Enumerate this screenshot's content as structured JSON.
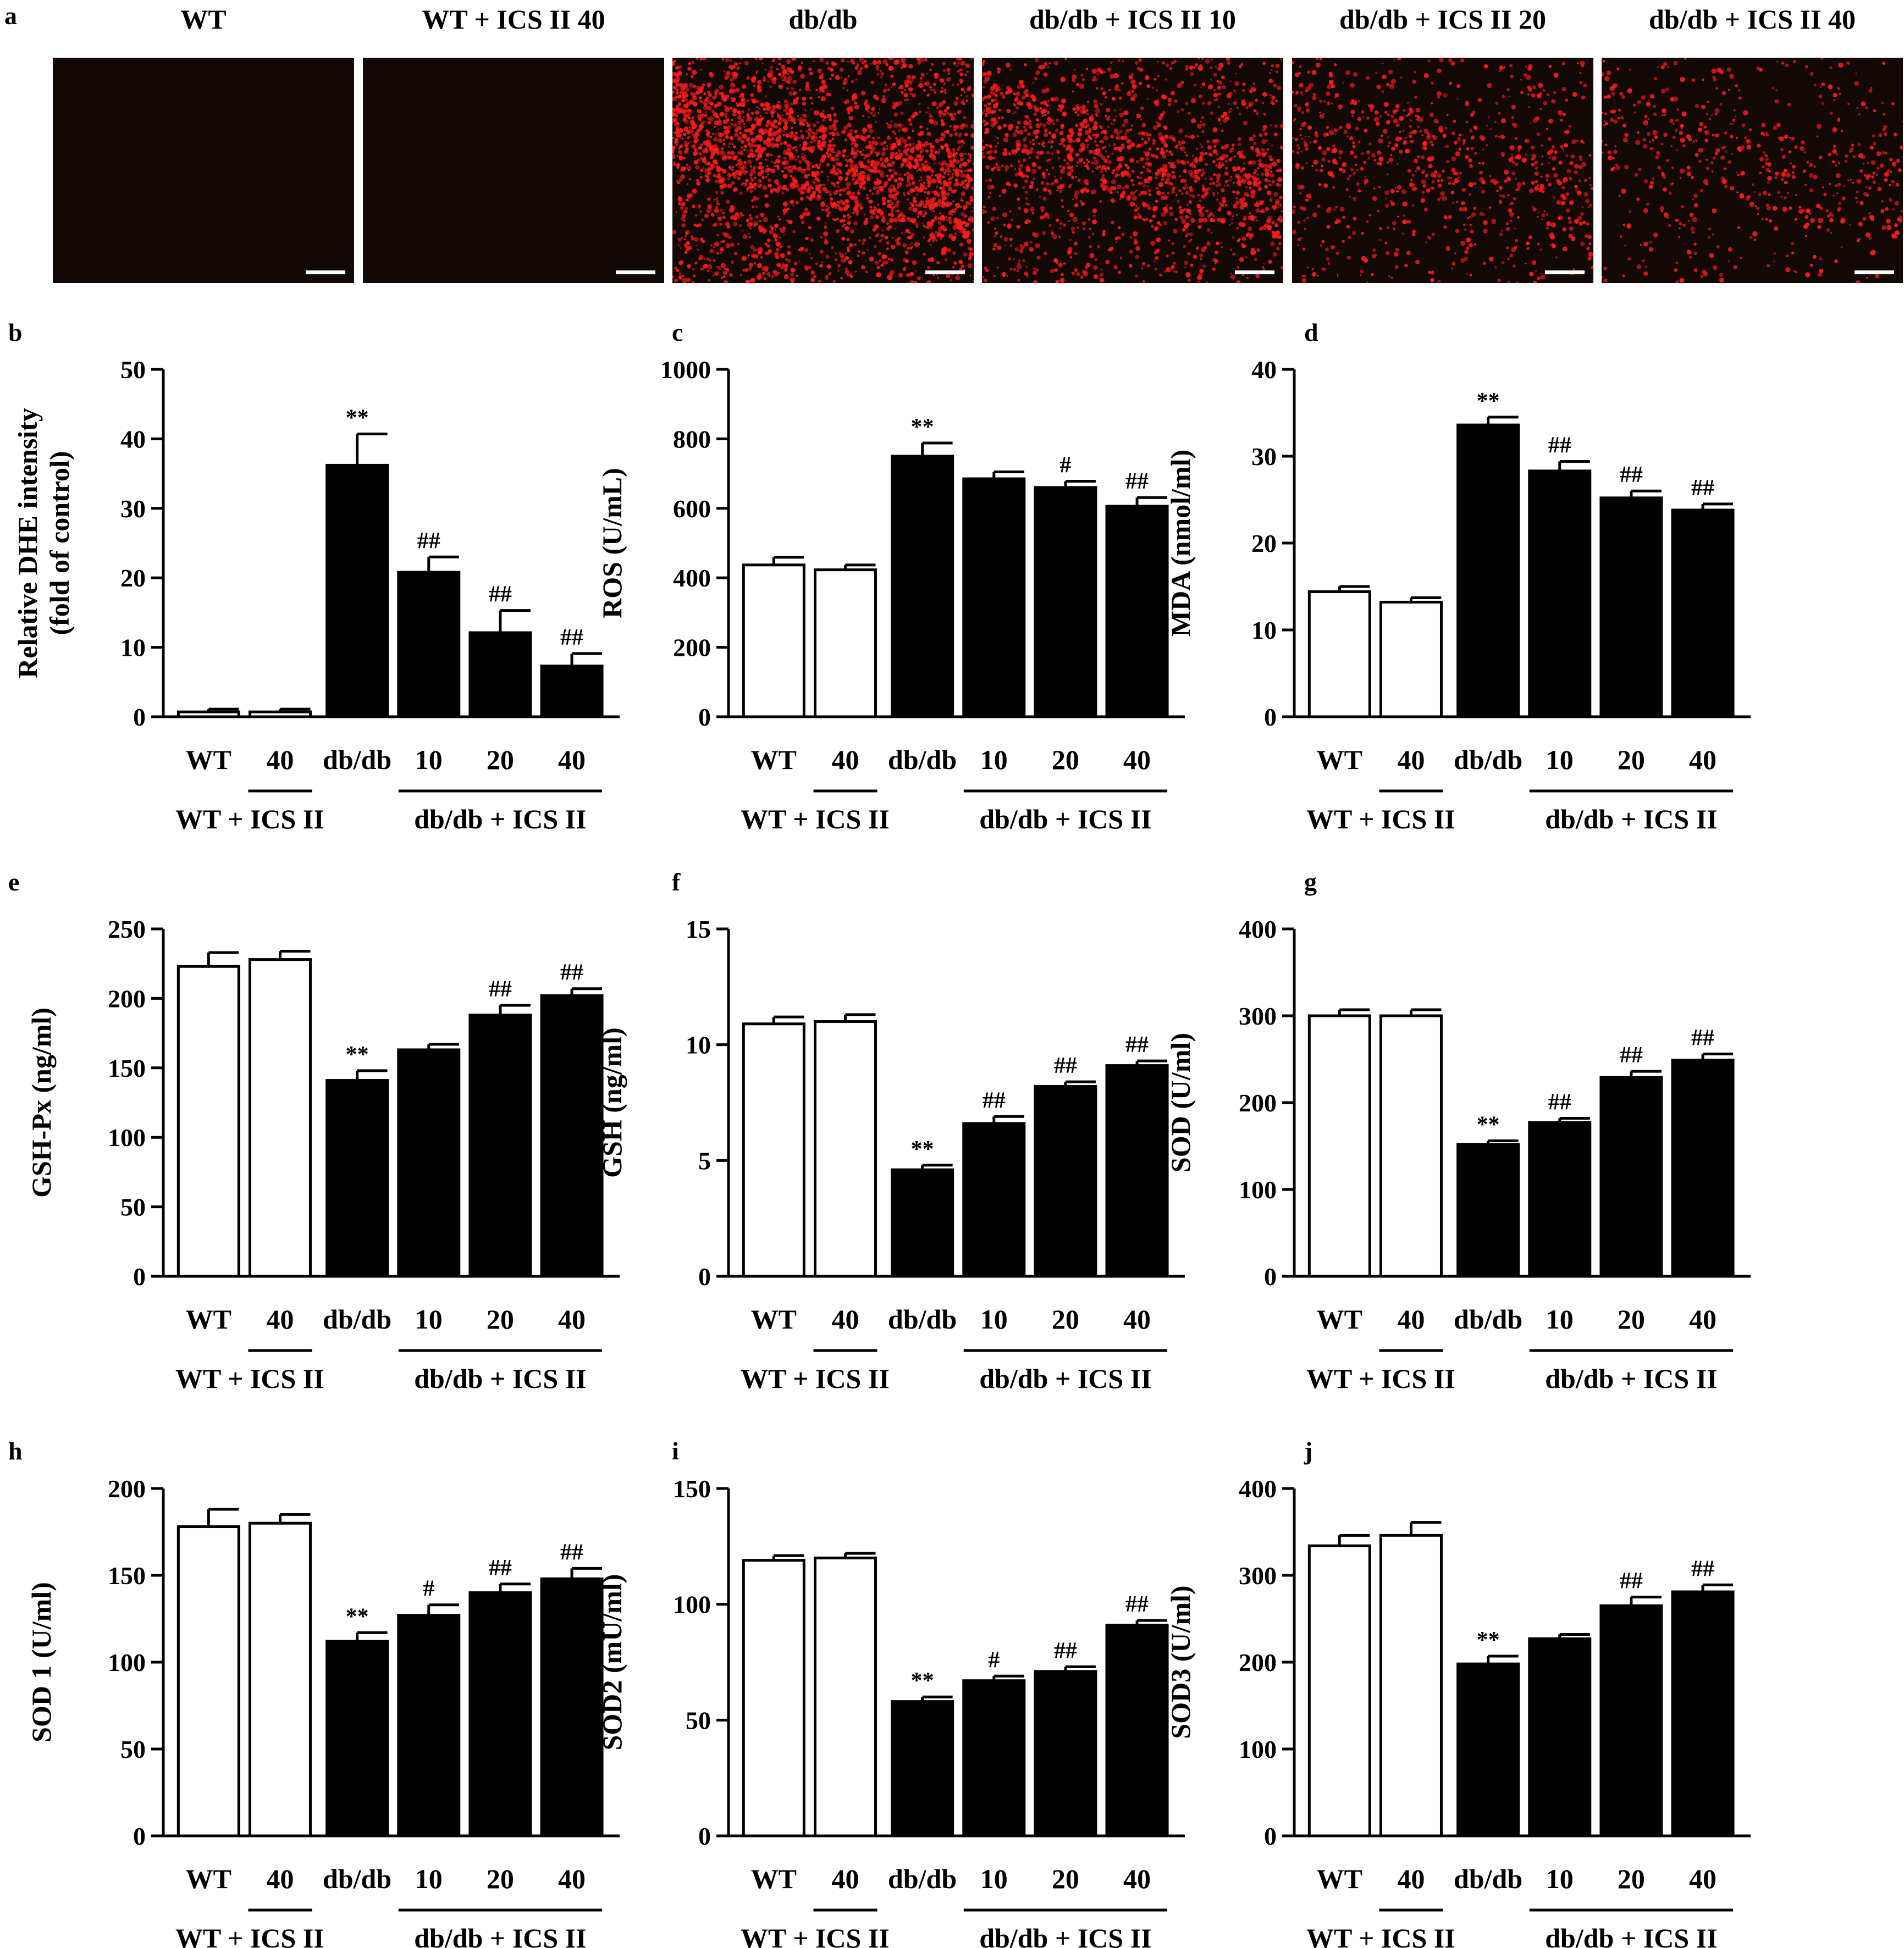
{
  "panel_a": {
    "label": "a",
    "images": [
      {
        "title": "WT",
        "level": 0.0
      },
      {
        "title": "WT + ICS II 40",
        "level": 0.0
      },
      {
        "title": "db/db",
        "level": 1.0
      },
      {
        "title": "db/db + ICS II 10",
        "level": 0.6
      },
      {
        "title": "db/db + ICS II 20",
        "level": 0.32
      },
      {
        "title": "db/db + ICS II 40",
        "level": 0.22
      }
    ],
    "colors": {
      "background": "#120806",
      "signal": "#ff1a1a",
      "scale_bar": "#ffffff"
    }
  },
  "chart_data": [
    {
      "panel": "b",
      "type": "bar",
      "ylabel": [
        "Relative DHE intensity",
        "(fold of control)"
      ],
      "ylim": [
        0,
        50
      ],
      "ticks": [
        0,
        10,
        20,
        30,
        40,
        50
      ],
      "categories": [
        "WT",
        "40",
        "db/db",
        "10",
        "20",
        "40"
      ],
      "values": [
        0.7,
        0.7,
        36.2,
        20.8,
        12.1,
        7.3
      ],
      "errors": [
        0.4,
        0.4,
        4.5,
        2.2,
        3.2,
        1.8
      ],
      "annotations": [
        "",
        "",
        "**",
        "##",
        "##",
        "##"
      ],
      "groups": [
        "WT + ICS II",
        "db/db + ICS II"
      ]
    },
    {
      "panel": "c",
      "type": "bar",
      "ylabel": [
        "ROS (U/mL)"
      ],
      "ylim": [
        0,
        1000
      ],
      "ticks": [
        0,
        200,
        400,
        600,
        800,
        1000
      ],
      "categories": [
        "WT",
        "40",
        "db/db",
        "10",
        "20",
        "40"
      ],
      "values": [
        437,
        423,
        750,
        685,
        660,
        606
      ],
      "errors": [
        22,
        14,
        38,
        20,
        18,
        25
      ],
      "annotations": [
        "",
        "",
        "**",
        "",
        "#",
        "##"
      ],
      "groups": [
        "WT + ICS II",
        "db/db + ICS II"
      ]
    },
    {
      "panel": "d",
      "type": "bar",
      "ylabel": [
        "MDA (nmol/ml)"
      ],
      "ylim": [
        0,
        40
      ],
      "ticks": [
        0,
        10,
        20,
        30,
        40
      ],
      "categories": [
        "WT",
        "40",
        "db/db",
        "10",
        "20",
        "40"
      ],
      "values": [
        14.4,
        13.2,
        33.6,
        28.3,
        25.2,
        23.8
      ],
      "errors": [
        0.6,
        0.5,
        0.9,
        1.1,
        0.8,
        0.7
      ],
      "annotations": [
        "",
        "",
        "**",
        "##",
        "##",
        "##"
      ],
      "groups": [
        "WT + ICS II",
        "db/db + ICS II"
      ]
    },
    {
      "panel": "e",
      "type": "bar",
      "ylabel": [
        "GSH-Px (ng/ml)"
      ],
      "ylim": [
        0,
        250
      ],
      "ticks": [
        0,
        50,
        100,
        150,
        200,
        250
      ],
      "categories": [
        "WT",
        "40",
        "db/db",
        "10",
        "20",
        "40"
      ],
      "values": [
        223,
        228,
        141,
        163,
        188,
        202
      ],
      "errors": [
        10,
        6,
        7,
        4,
        7,
        5
      ],
      "annotations": [
        "",
        "",
        "**",
        "",
        "##",
        "##"
      ],
      "groups": [
        "WT + ICS II",
        "db/db + ICS II"
      ]
    },
    {
      "panel": "f",
      "type": "bar",
      "ylabel": [
        "GSH (ng/ml)"
      ],
      "ylim": [
        0,
        15
      ],
      "ticks": [
        0,
        5,
        10,
        15
      ],
      "categories": [
        "WT",
        "40",
        "db/db",
        "10",
        "20",
        "40"
      ],
      "values": [
        10.9,
        11.0,
        4.6,
        6.6,
        8.2,
        9.1
      ],
      "errors": [
        0.3,
        0.3,
        0.2,
        0.3,
        0.2,
        0.2
      ],
      "annotations": [
        "",
        "",
        "**",
        "##",
        "##",
        "##"
      ],
      "groups": [
        "WT + ICS II",
        "db/db + ICS II"
      ]
    },
    {
      "panel": "g",
      "type": "bar",
      "ylabel": [
        "SOD (U/ml)"
      ],
      "ylim": [
        0,
        400
      ],
      "ticks": [
        0,
        100,
        200,
        300,
        400
      ],
      "categories": [
        "WT",
        "40",
        "db/db",
        "10",
        "20",
        "40"
      ],
      "values": [
        300,
        300,
        152,
        177,
        229,
        249
      ],
      "errors": [
        7,
        7,
        4,
        5,
        7,
        7
      ],
      "annotations": [
        "",
        "",
        "**",
        "##",
        "##",
        "##"
      ],
      "groups": [
        "WT + ICS II",
        "db/db + ICS II"
      ]
    },
    {
      "panel": "h",
      "type": "bar",
      "ylabel": [
        "SOD 1 (U/ml)"
      ],
      "ylim": [
        0,
        200
      ],
      "ticks": [
        0,
        50,
        100,
        150,
        200
      ],
      "categories": [
        "WT",
        "40",
        "db/db",
        "10",
        "20",
        "40"
      ],
      "values": [
        178,
        180,
        112,
        127,
        140,
        148
      ],
      "errors": [
        10,
        5,
        5,
        6,
        5,
        6
      ],
      "annotations": [
        "",
        "",
        "**",
        "#",
        "##",
        "##"
      ],
      "groups": [
        "WT + ICS II",
        "db/db + ICS II"
      ]
    },
    {
      "panel": "i",
      "type": "bar",
      "ylabel": [
        "SOD2 (mU/ml)"
      ],
      "ylim": [
        0,
        150
      ],
      "ticks": [
        0,
        50,
        100,
        150
      ],
      "categories": [
        "WT",
        "40",
        "db/db",
        "10",
        "20",
        "40"
      ],
      "values": [
        119,
        120,
        58,
        67,
        71,
        91
      ],
      "errors": [
        2,
        2,
        2,
        2,
        2,
        2
      ],
      "annotations": [
        "",
        "",
        "**",
        "#",
        "##",
        "##"
      ],
      "groups": [
        "WT + ICS II",
        "db/db + ICS II"
      ]
    },
    {
      "panel": "j",
      "type": "bar",
      "ylabel": [
        "SOD3 (U/ml)"
      ],
      "ylim": [
        0,
        400
      ],
      "ticks": [
        0,
        100,
        200,
        300,
        400
      ],
      "categories": [
        "WT",
        "40",
        "db/db",
        "10",
        "20",
        "40"
      ],
      "values": [
        334,
        346,
        198,
        227,
        265,
        281
      ],
      "errors": [
        12,
        15,
        9,
        5,
        10,
        8
      ],
      "annotations": [
        "",
        "",
        "**",
        "",
        "##",
        "##"
      ],
      "groups": [
        "WT + ICS II",
        "db/db + ICS II"
      ]
    }
  ]
}
